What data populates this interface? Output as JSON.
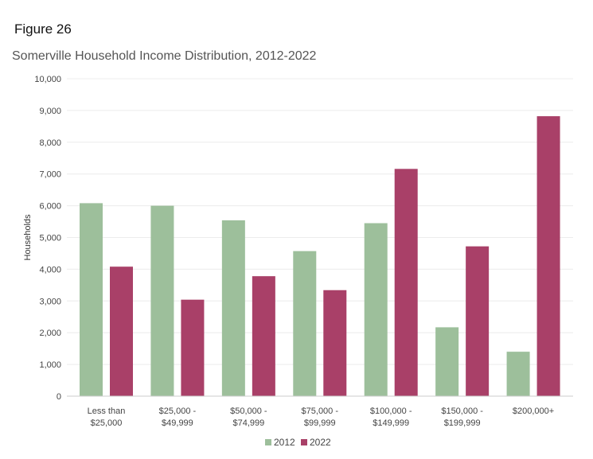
{
  "figure_label": "Figure 26",
  "chart_data": {
    "type": "bar",
    "title": "Somerville Household Income Distribution, 2012-2022",
    "xlabel": "",
    "ylabel": "Households",
    "ylim": [
      0,
      10000
    ],
    "yticks": [
      0,
      1000,
      2000,
      3000,
      4000,
      5000,
      6000,
      7000,
      8000,
      9000,
      10000
    ],
    "ytick_labels": [
      "0",
      "1,000",
      "2,000",
      "3,000",
      "4,000",
      "5,000",
      "6,000",
      "7,000",
      "8,000",
      "9,000",
      "10,000"
    ],
    "grid": true,
    "legend_position": "bottom-center",
    "categories": [
      [
        "Less than",
        "$25,000"
      ],
      [
        "$25,000 -",
        "$49,999"
      ],
      [
        "$50,000 -",
        "$74,999"
      ],
      [
        "$75,000 -",
        "$99,999"
      ],
      [
        "$100,000 -",
        "$149,999"
      ],
      [
        "$150,000 -",
        "$199,999"
      ],
      [
        "$200,000+"
      ]
    ],
    "series": [
      {
        "name": "2012",
        "color": "#9dbf9b",
        "values": [
          6080,
          6000,
          5540,
          4570,
          5450,
          2170,
          1400
        ]
      },
      {
        "name": "2022",
        "color": "#a94068",
        "values": [
          4080,
          3040,
          3780,
          3340,
          7160,
          4720,
          8820
        ]
      }
    ]
  }
}
